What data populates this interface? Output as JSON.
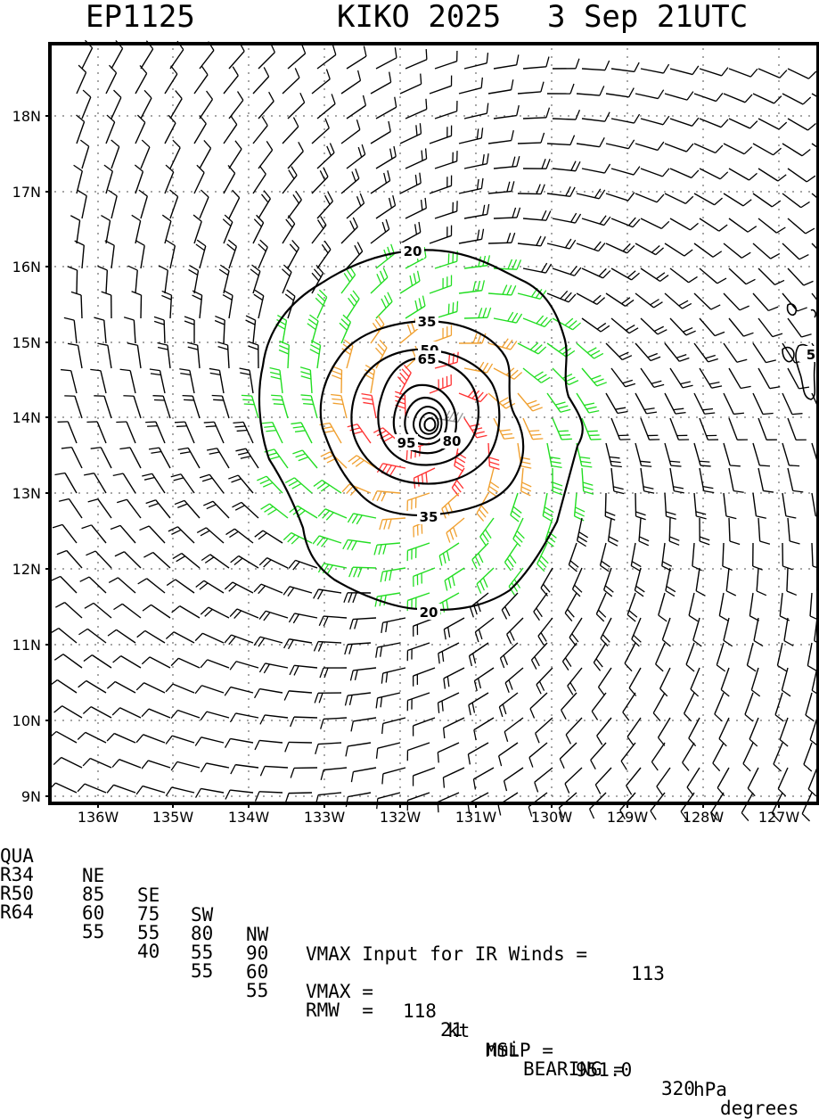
{
  "title": {
    "storm_id": "EP1125",
    "storm_name_year": "KIKO 2025",
    "date_time": "3 Sep 21UTC"
  },
  "axes": {
    "lat_labels": [
      "18N",
      "17N",
      "16N",
      "15N",
      "14N",
      "13N",
      "12N",
      "11N",
      "10N",
      "9N"
    ],
    "lon_labels": [
      "136W",
      "135W",
      "134W",
      "133W",
      "132W",
      "131W",
      "130W",
      "129W",
      "128W",
      "127W"
    ]
  },
  "contours": {
    "labels": [
      "20",
      "35",
      "50",
      "65",
      "95",
      "80",
      "35",
      "20",
      "5"
    ]
  },
  "colors": {
    "barb_default": "#000000",
    "barb_34kt": "#22dd22",
    "barb_50kt": "#f0a030",
    "barb_64kt": "#ff3333",
    "barb_core": "#999999",
    "contour": "#000000"
  },
  "wind_radii": {
    "header": [
      "QUA",
      "NE",
      "SE",
      "SW",
      "NW"
    ],
    "rows": [
      [
        "R34",
        "85",
        "75",
        "80",
        "90"
      ],
      [
        "R50",
        "60",
        "55",
        "55",
        "60"
      ],
      [
        "R64",
        "55",
        "40",
        "55",
        "55"
      ]
    ]
  },
  "info": {
    "vmax_input_label": "VMAX Input for IR Winds =",
    "vmax_input_value": "113",
    "vmax_label": "VMAX =",
    "vmax_value": "118",
    "vmax_unit": "kt",
    "mslp_label": "MSLP =",
    "mslp_value": "951.0",
    "mslp_unit": "hPa",
    "rmw_label": "RMW  =",
    "rmw_value": "21",
    "rmw_unit": "nmi",
    "bearing_label": "BEARING =",
    "bearing_value": "320",
    "bearing_unit": "degrees"
  }
}
